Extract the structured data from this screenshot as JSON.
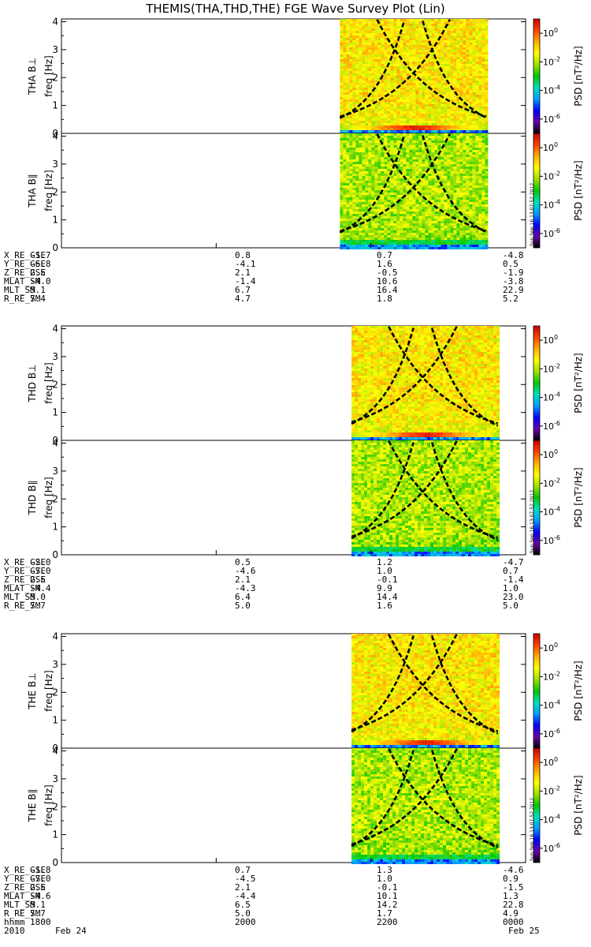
{
  "title": "THEMIS(THA,THD,THE) FGE Wave Survey Plot (Lin)",
  "colorbar": {
    "label": "PSD [nT²/Hz]",
    "ticks": [
      {
        "base": "10",
        "exp": "0",
        "value": 1
      },
      {
        "base": "10",
        "exp": "-2",
        "value": 0.01
      },
      {
        "base": "10",
        "exp": "-4",
        "value": 0.0001
      },
      {
        "base": "10",
        "exp": "-6",
        "value": 1e-06
      }
    ],
    "range": [
      1e-07,
      10
    ],
    "colors": [
      "#000000",
      "#6a00a8",
      "#0000ff",
      "#00a0ff",
      "#00e0c0",
      "#00c800",
      "#a0e000",
      "#ffff00",
      "#ffb000",
      "#ff4000",
      "#cc0000"
    ]
  },
  "timestamp": "Sun Sep 16 13:07:52 2012",
  "chart_data": {
    "type": "heatmap",
    "title": "THEMIS(THA,THD,THE) FGE Wave Survey Plot (Lin)",
    "x_tick_labels": [
      "1800",
      "2000",
      "2200",
      "0000"
    ],
    "x_range_hhmm": [
      "1800",
      "0000"
    ],
    "ylabel": "freq [Hz]",
    "y_range_hz": [
      0,
      4.1
    ],
    "y_ticks": [
      0,
      1,
      2,
      3,
      4
    ],
    "date_labels": {
      "year": "2010",
      "start": "Feb 24",
      "end": "Feb 25",
      "time_header": "hhmm"
    },
    "probes": [
      {
        "name": "THA",
        "panels": [
          {
            "label": "THA B⊥",
            "data_start_hour": 21.6,
            "data_end_hour": 23.5,
            "curves_sym_hour": 22.55
          },
          {
            "label": "THA B∥",
            "data_start_hour": 21.6,
            "data_end_hour": 23.5,
            "curves_sym_hour": 22.55
          }
        ],
        "ephemeris": [
          {
            "name": "X_RE_GSE",
            "values": [
              "-1.7",
              "0.8",
              "0.7",
              "-4.8"
            ]
          },
          {
            "name": "Y_RE_GSE",
            "values": [
              "-6.8",
              "-4.1",
              "1.6",
              "0.5"
            ]
          },
          {
            "name": "Z_RE_GSE",
            "values": [
              "2.5",
              "2.1",
              "-0.5",
              "-1.9"
            ]
          },
          {
            "name": "MLAT_SM",
            "values": [
              "-4.0",
              "-1.4",
              "10.6",
              "-3.8"
            ]
          },
          {
            "name": "MLT_SM",
            "values": [
              "5.1",
              "6.7",
              "16.4",
              "22.9"
            ]
          },
          {
            "name": "R_RE_SM",
            "values": [
              "7.4",
              "4.7",
              "1.8",
              "5.2"
            ]
          }
        ]
      },
      {
        "name": "THD",
        "panels": [
          {
            "label": "THD B⊥",
            "data_start_hour": 21.75,
            "data_end_hour": 23.65,
            "curves_sym_hour": 22.67
          },
          {
            "label": "THD B∥",
            "data_start_hour": 21.75,
            "data_end_hour": 23.65,
            "curves_sym_hour": 22.67
          }
        ],
        "ephemeris": [
          {
            "name": "X_RE_GSE",
            "values": [
              "-2.0",
              "0.5",
              "1.2",
              "-4.7"
            ]
          },
          {
            "name": "Y_RE_GSE",
            "values": [
              "-7.0",
              "-4.6",
              "1.0",
              "0.7"
            ]
          },
          {
            "name": "Z_RE_GSE",
            "values": [
              "2.5",
              "2.1",
              "-0.1",
              "-1.4"
            ]
          },
          {
            "name": "MLAT_SM",
            "values": [
              "-4.4",
              "-4.3",
              "9.9",
              "1.0"
            ]
          },
          {
            "name": "MLT_SM",
            "values": [
              "5.0",
              "6.4",
              "14.4",
              "23.0"
            ]
          },
          {
            "name": "R_RE_SM",
            "values": [
              "7.7",
              "5.0",
              "1.6",
              "5.0"
            ]
          }
        ]
      },
      {
        "name": "THE",
        "panels": [
          {
            "label": "THE B⊥",
            "data_start_hour": 21.75,
            "data_end_hour": 23.65,
            "curves_sym_hour": 22.67
          },
          {
            "label": "THE B∥",
            "data_start_hour": 21.75,
            "data_end_hour": 23.65,
            "curves_sym_hour": 22.67
          }
        ],
        "ephemeris": [
          {
            "name": "X_RE_GSE",
            "values": [
              "-1.8",
              "0.7",
              "1.3",
              "-4.6"
            ]
          },
          {
            "name": "Y_RE_GSE",
            "values": [
              "-7.0",
              "-4.5",
              "1.0",
              "0.9"
            ]
          },
          {
            "name": "Z_RE_GSE",
            "values": [
              "2.5",
              "2.1",
              "-0.1",
              "-1.5"
            ]
          },
          {
            "name": "MLAT_SM",
            "values": [
              "-4.6",
              "-4.4",
              "10.1",
              "1.3"
            ]
          },
          {
            "name": "MLT_SM",
            "values": [
              "5.1",
              "6.5",
              "14.2",
              "22.8"
            ]
          },
          {
            "name": "R_RE_SM",
            "values": [
              "7.7",
              "5.0",
              "1.7",
              "4.9"
            ]
          }
        ]
      }
    ]
  }
}
